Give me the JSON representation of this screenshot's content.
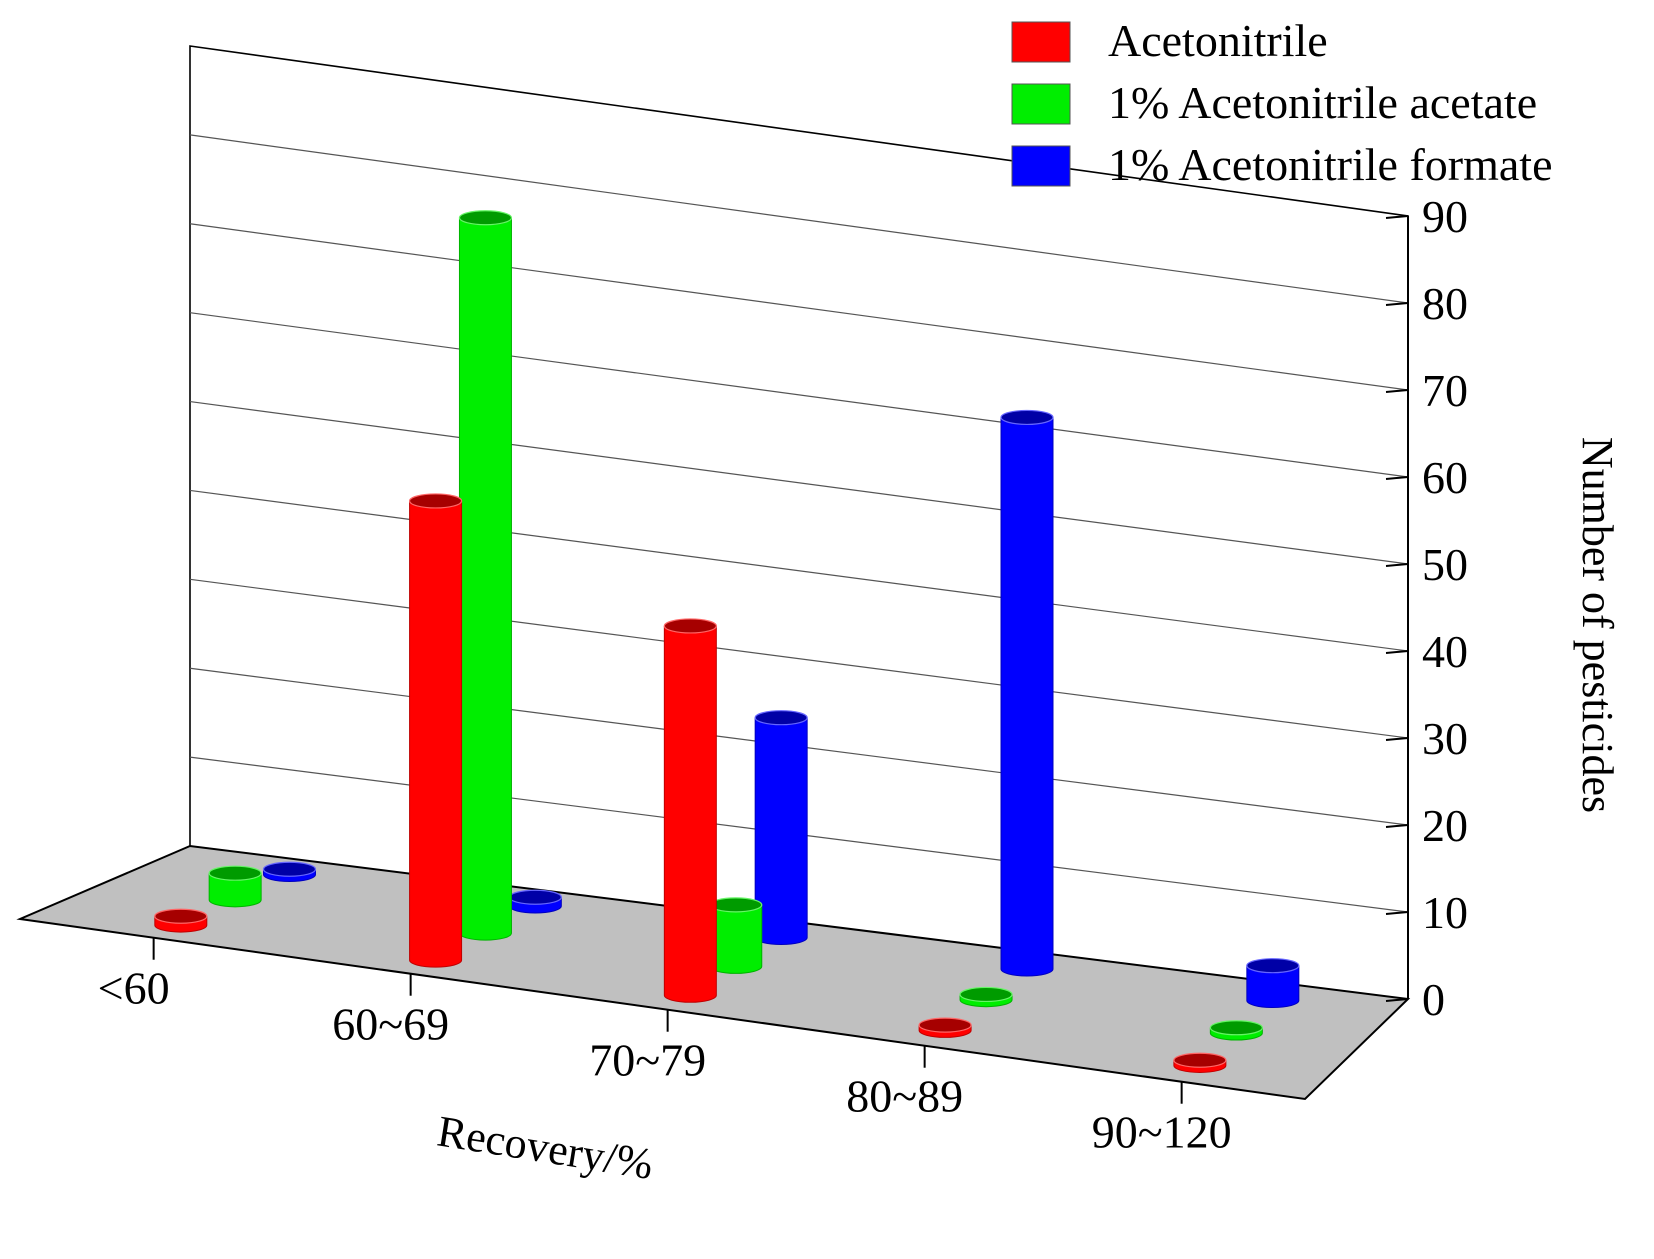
{
  "chart_data": {
    "type": "bar",
    "style": "3d-cylinder",
    "categories": [
      "<60",
      "60~69",
      "70~79",
      "80~89",
      "90~120"
    ],
    "series": [
      {
        "name": "Acetonitrile",
        "color": "#ff0000",
        "values": [
          1,
          52,
          42,
          0,
          0
        ]
      },
      {
        "name": "1% Acetonitrile acetate",
        "color": "#00ee00",
        "values": [
          3,
          81,
          7,
          0,
          0
        ]
      },
      {
        "name": "1% Acetonitrile formate",
        "color": "#0000ff",
        "values": [
          0,
          1,
          25,
          63,
          4
        ]
      }
    ],
    "xlabel": "Recovery/%",
    "ylabel": "Number of pesticides",
    "ylim": [
      0,
      90
    ],
    "yticks": [
      "0",
      "10",
      "20",
      "30",
      "40",
      "50",
      "60",
      "70",
      "80",
      "90"
    ],
    "grid": true,
    "legend_position": "top-right",
    "floor_color": "#c0c0c0"
  }
}
